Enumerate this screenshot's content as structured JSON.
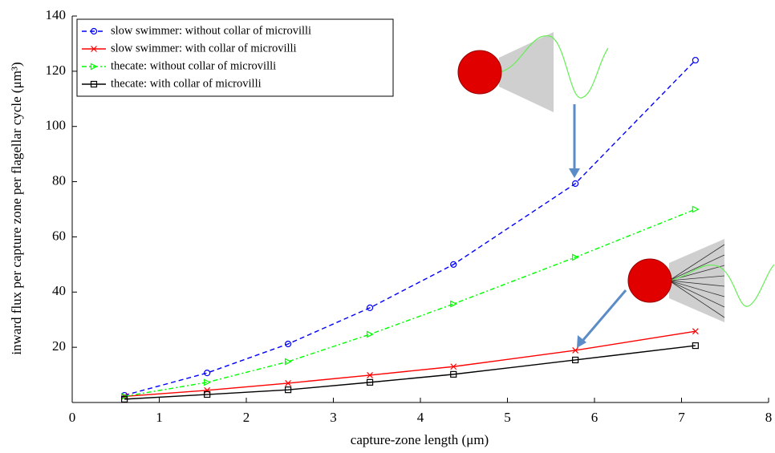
{
  "chart_data": {
    "type": "line",
    "x_label": "capture-zone length (μm)",
    "y_label": "inward flux per capture zone per flagellar cycle (μm³)",
    "x": [
      0.6,
      1.55,
      2.48,
      3.42,
      4.38,
      5.78,
      7.16
    ],
    "series": [
      {
        "name": "slow swimmer: without collar of microvilli",
        "color": "#0000ff",
        "marker": "circle",
        "line_style": "dashed",
        "values": [
          2.6,
          10.7,
          21.2,
          34.3,
          50,
          79.3,
          124
        ]
      },
      {
        "name": "slow swimmer: with collar of microvilli",
        "color": "#ff0000",
        "marker": "x",
        "line_style": "solid",
        "values": [
          2.2,
          4.4,
          7,
          9.9,
          13,
          18.9,
          25.8
        ]
      },
      {
        "name": "thecate: without collar of microvilli",
        "color": "#00ff00",
        "marker": "triangle-right",
        "line_style": "dashdot",
        "values": [
          2.2,
          7.3,
          14.8,
          24.7,
          35.7,
          52.6,
          70
        ]
      },
      {
        "name": "thecate: with collar of microvilli",
        "color": "#000000",
        "marker": "square",
        "line_style": "solid",
        "values": [
          1.2,
          2.9,
          4.6,
          7.3,
          10.2,
          15.4,
          20.6
        ]
      }
    ],
    "xlim": [
      0,
      8
    ],
    "ylim": [
      0,
      140
    ],
    "xticks": [
      0,
      1,
      2,
      3,
      4,
      5,
      6,
      7,
      8
    ],
    "yticks": [
      20,
      40,
      60,
      80,
      100,
      120,
      140
    ],
    "legend": "upper left"
  }
}
